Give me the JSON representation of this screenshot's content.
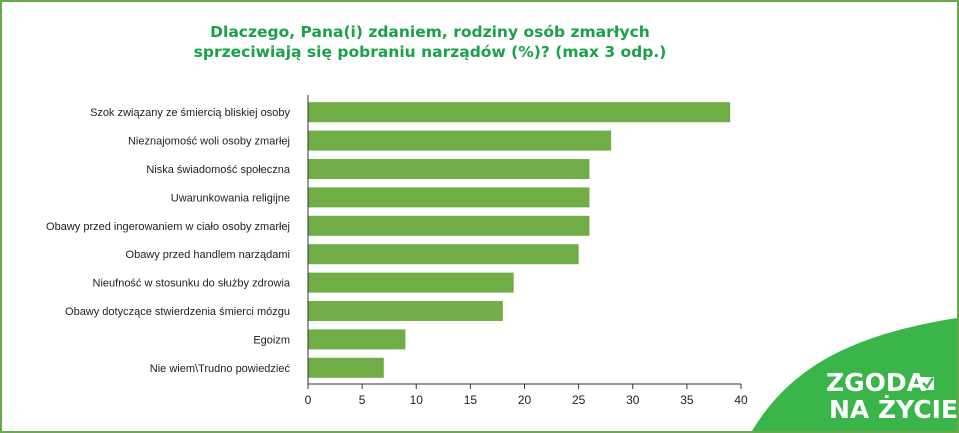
{
  "chart_data": {
    "type": "bar",
    "orientation": "horizontal",
    "title_lines": [
      "Dlaczego, Pana(i) zdaniem, rodziny osób zmarłych",
      "sprzeciwiają się pobraniu narządów (%)? (max 3 odp.)"
    ],
    "categories": [
      "Szok związany ze śmiercią bliskiej osoby",
      "Nieznajomość woli osoby zmarłej",
      "Niska świadomość społeczna",
      "Uwarunkowania religijne",
      "Obawy przed ingerowaniem w ciało osoby zmarłej",
      "Obawy przed handlem narządami",
      "Nieufność w stosunku do służby zdrowia",
      "Obawy dotyczące stwierdzenia śmierci mózgu",
      "Egoizm",
      "Nie wiem\\Trudno powiedzieć"
    ],
    "values": [
      39,
      28,
      26,
      26,
      26,
      25,
      19,
      18,
      9,
      7
    ],
    "xlim": [
      0,
      40
    ],
    "xticks": [
      "0",
      "5",
      "10",
      "15",
      "20",
      "25",
      "30",
      "35",
      "40"
    ],
    "grid": false,
    "bar_color": "#70ad47"
  },
  "logo": {
    "line1": "ZGODA",
    "line2": "NA ŻYCIE",
    "color": "#39b54a"
  },
  "colors": {
    "title": "#1aa14a",
    "frame": "#6aa84f"
  }
}
